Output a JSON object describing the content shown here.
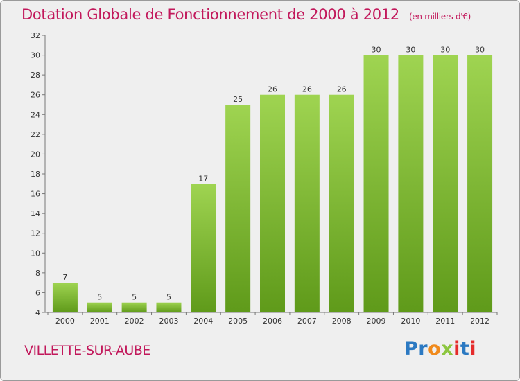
{
  "title": "Dotation Globale de Fonctionnement de 2000 à 2012",
  "unit": "(en milliers d'€)",
  "commune": "VILLETTE-SUR-AUBE",
  "logo": {
    "letters": [
      "P",
      "r",
      "o",
      "x",
      "i",
      "t",
      "i"
    ],
    "colors": [
      "#2b79c2",
      "#2b79c2",
      "#f08a1c",
      "#8cc63f",
      "#e52b2b",
      "#2b79c2",
      "#e52b2b"
    ]
  },
  "colors": {
    "title": "#c2185b",
    "bar_light": "#9fd451",
    "bar_dark": "#5f9a1a"
  },
  "chart_data": {
    "type": "bar",
    "categories": [
      "2000",
      "2001",
      "2002",
      "2003",
      "2004",
      "2005",
      "2006",
      "2007",
      "2008",
      "2009",
      "2010",
      "2011",
      "2012"
    ],
    "values": [
      7,
      5,
      5,
      5,
      17,
      25,
      26,
      26,
      26,
      30,
      30,
      30,
      30
    ],
    "ylim": [
      4,
      32
    ],
    "yticks": [
      4,
      6,
      8,
      10,
      12,
      14,
      16,
      18,
      20,
      22,
      24,
      26,
      28,
      30,
      32
    ],
    "grid": false,
    "legend": "none"
  }
}
